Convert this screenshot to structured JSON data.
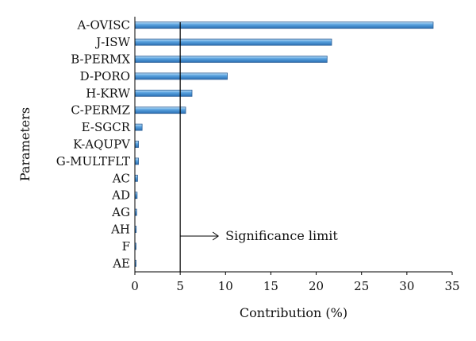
{
  "chart_data": {
    "type": "bar",
    "orientation": "horizontal",
    "categories": [
      "A-OVISC",
      "J-ISW",
      "B-PERMX",
      "D-PORO",
      "H-KRW",
      "C-PERMZ",
      "E-SGCR",
      "K-AQUPV",
      "G-MULTFLT",
      "AC",
      "AD",
      "AG",
      "AH",
      "F",
      "AE"
    ],
    "values": [
      32.9,
      21.7,
      21.2,
      10.2,
      6.3,
      5.6,
      0.8,
      0.4,
      0.4,
      0.3,
      0.25,
      0.2,
      0.15,
      0.1,
      0.1
    ],
    "xlabel": "Contribution (%)",
    "ylabel": "Parameters",
    "xlim": [
      0,
      35
    ],
    "xticks": [
      "0",
      "5",
      "10",
      "15",
      "20",
      "25",
      "30",
      "35"
    ],
    "grid": false,
    "reference_line": {
      "value": 5
    },
    "annotation": "Significance limit",
    "colors": {
      "bar_light": "#bfe0f7",
      "bar_mid": "#5aa3e0",
      "bar_dark": "#2b6fb3",
      "bar_edge": "#2d5f96",
      "axis": "#000000"
    }
  }
}
